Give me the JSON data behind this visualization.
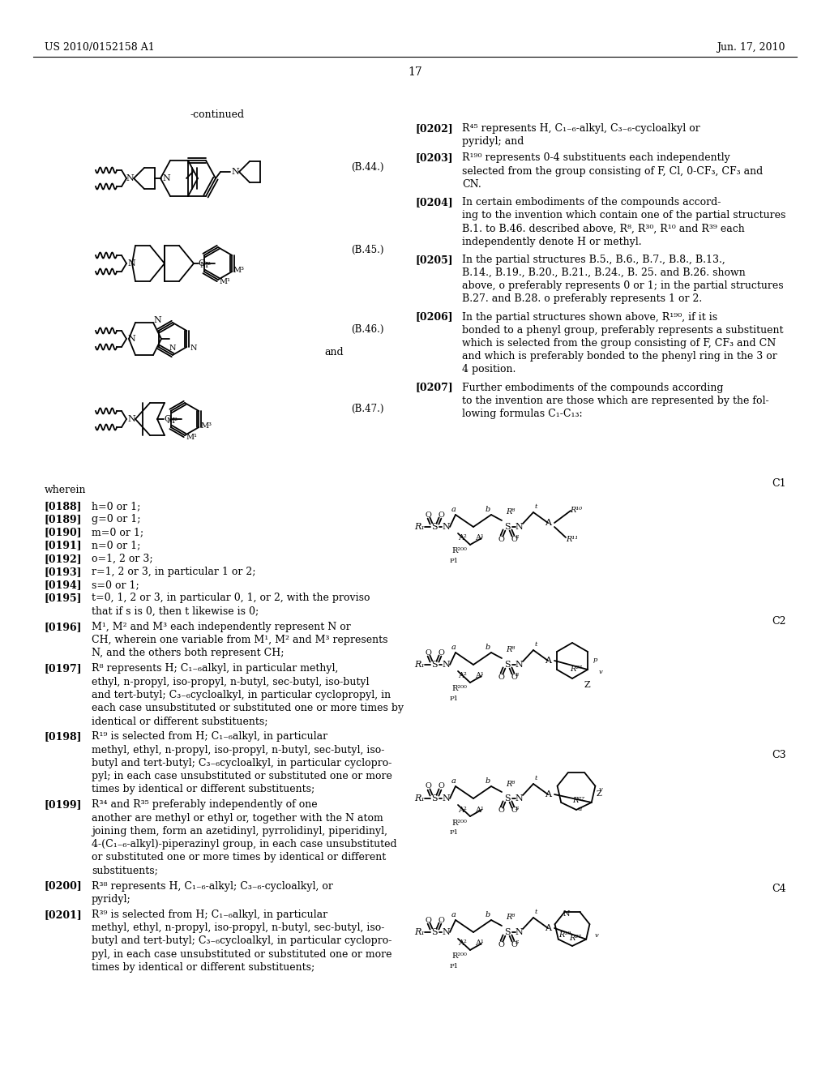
{
  "page_header_left": "US 2010/0152158 A1",
  "page_header_right": "Jun. 17, 2010",
  "page_number": "17",
  "bg": "#ffffff"
}
